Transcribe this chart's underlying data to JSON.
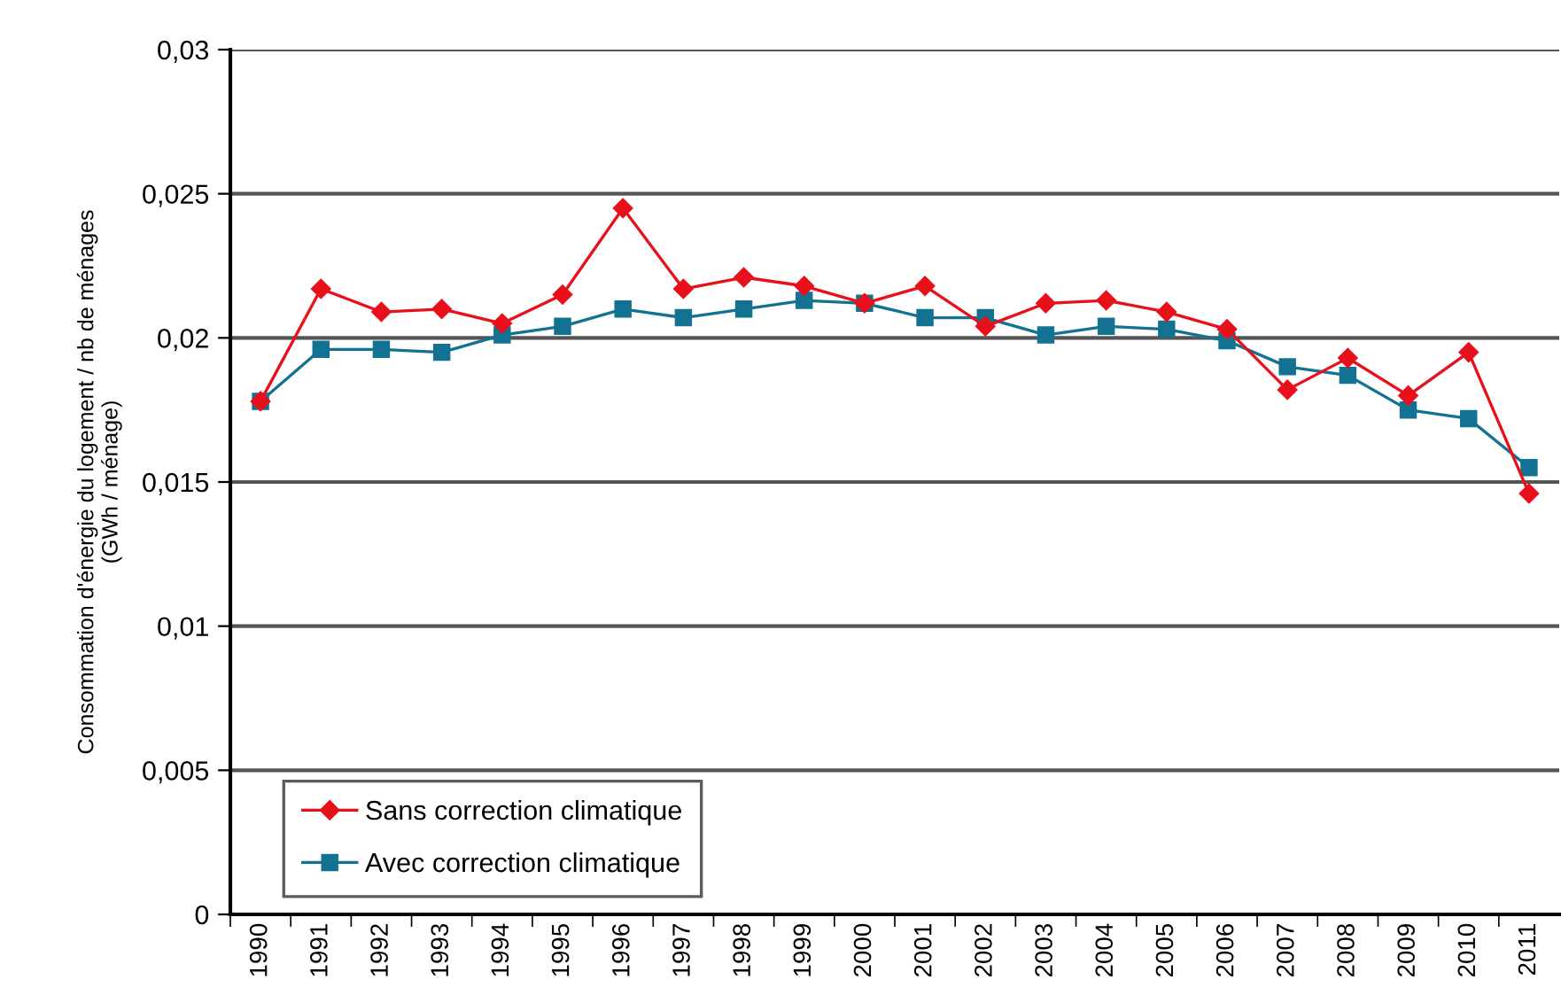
{
  "chart_data": {
    "type": "line",
    "ylabel": "Consommation d'énergie du logement / nb de ménages\n(GWh / ménage)",
    "categories": [
      "1990",
      "1991",
      "1992",
      "1993",
      "1994",
      "1995",
      "1996",
      "1997",
      "1998",
      "1999",
      "2000",
      "2001",
      "2002",
      "2003",
      "2004",
      "2005",
      "2006",
      "2007",
      "2008",
      "2009",
      "2010",
      "2011"
    ],
    "series": [
      {
        "name": "Sans correction climatique",
        "color": "#e8101a",
        "marker": "diamond",
        "values": [
          0.0178,
          0.0217,
          0.0209,
          0.021,
          0.0205,
          0.0215,
          0.0245,
          0.0217,
          0.0221,
          0.0218,
          0.0212,
          0.0218,
          0.0204,
          0.0212,
          0.0213,
          0.0209,
          0.0203,
          0.0182,
          0.0193,
          0.018,
          0.0195,
          0.0146
        ]
      },
      {
        "name": "Avec correction climatique",
        "color": "#137291",
        "marker": "square",
        "values": [
          0.0178,
          0.0196,
          0.0196,
          0.0195,
          0.0201,
          0.0204,
          0.021,
          0.0207,
          0.021,
          0.0213,
          0.0212,
          0.0207,
          0.0207,
          0.0201,
          0.0204,
          0.0203,
          0.0199,
          0.019,
          0.0187,
          0.0175,
          0.0172,
          0.0155
        ]
      }
    ],
    "ylim": [
      0,
      0.03
    ],
    "yticks": [
      {
        "value": 0,
        "label": "0"
      },
      {
        "value": 0.005,
        "label": "0,005"
      },
      {
        "value": 0.01,
        "label": "0,01"
      },
      {
        "value": 0.015,
        "label": "0,015"
      },
      {
        "value": 0.02,
        "label": "0,02"
      },
      {
        "value": 0.025,
        "label": "0,025"
      },
      {
        "value": 0.03,
        "label": "0,03"
      }
    ],
    "grid": "y",
    "legend": "bottom left"
  }
}
